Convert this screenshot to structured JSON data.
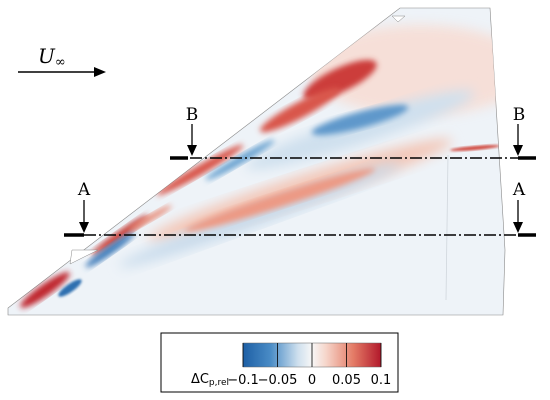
{
  "freestream": {
    "symbol": "U",
    "subscript": "∞"
  },
  "sections": [
    {
      "name": "A"
    },
    {
      "name": "B"
    }
  ],
  "colorbar": {
    "quantity": "ΔC",
    "quantity_sub": "p,rel",
    "ticks": [
      "−0.1",
      "−0.05",
      "0",
      "0.05",
      "0.1"
    ],
    "tick_values": [
      -0.1,
      -0.05,
      0,
      0.05,
      0.1
    ],
    "range": [
      -0.1,
      0.1
    ],
    "colors": [
      "#1d63a8",
      "#6aa6d3",
      "#e6eef5",
      "#f2f2f2",
      "#f5dcd3",
      "#e07a66",
      "#b3192a"
    ]
  }
}
